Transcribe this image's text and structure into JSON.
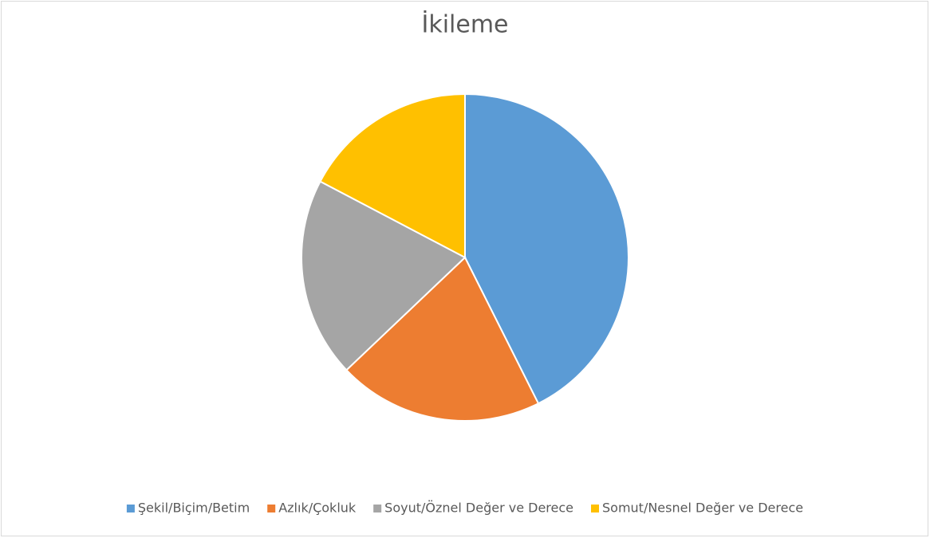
{
  "chart_data": {
    "type": "pie",
    "title": "İkileme",
    "categories": [
      "Şekil/Biçim/Betim",
      "Azlık/Çokluk",
      "Soyut/Öznel Değer ve Derece",
      "Somut/Nesnel Değer ve Derece"
    ],
    "values": [
      42.6,
      20.3,
      19.8,
      17.3
    ],
    "colors": [
      "#5b9bd5",
      "#ed7d31",
      "#a5a5a5",
      "#ffc000"
    ],
    "legend": "bottom"
  }
}
